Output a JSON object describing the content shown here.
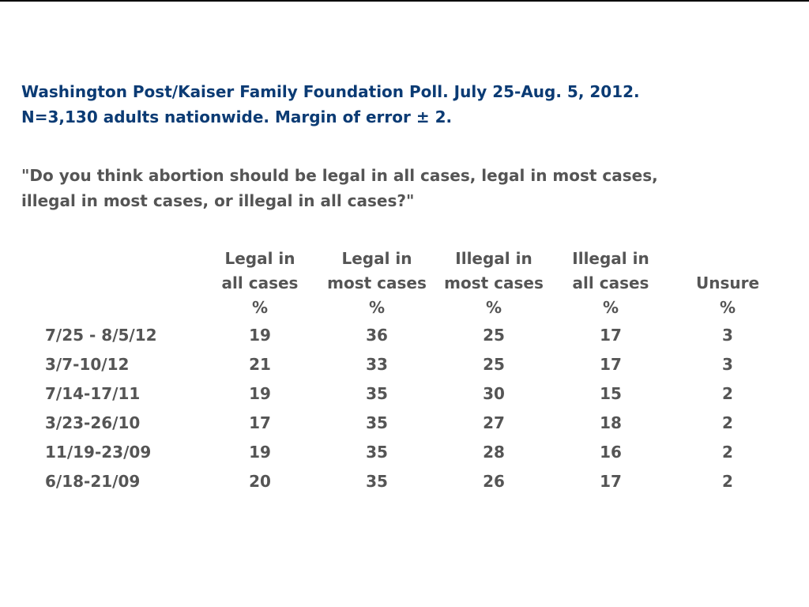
{
  "header": {
    "line1": "Washington Post/Kaiser Family Foundation Poll. July 25-Aug. 5, 2012.",
    "line2": "N=3,130 adults nationwide. Margin of error ± 2."
  },
  "question": {
    "line1": "\"Do you think abortion should be legal in all cases, legal in most cases,",
    "line2": "illegal in most cases, or illegal in all cases?\""
  },
  "table": {
    "columns": [
      {
        "line1": "Legal in",
        "line2": "all cases",
        "unit": "%"
      },
      {
        "line1": "Legal in",
        "line2": "most cases",
        "unit": "%"
      },
      {
        "line1": "Illegal in",
        "line2": "most cases",
        "unit": "%"
      },
      {
        "line1": "Illegal in",
        "line2": "all cases",
        "unit": "%"
      },
      {
        "line1": "",
        "line2": "Unsure",
        "unit": "%"
      }
    ],
    "rows": [
      {
        "date": "7/25 - 8/5/12",
        "values": [
          "19",
          "36",
          "25",
          "17",
          "3"
        ]
      },
      {
        "date": "3/7-10/12",
        "values": [
          "21",
          "33",
          "25",
          "17",
          "3"
        ]
      },
      {
        "date": "7/14-17/11",
        "values": [
          "19",
          "35",
          "30",
          "15",
          "2"
        ]
      },
      {
        "date": "3/23-26/10",
        "values": [
          "17",
          "35",
          "27",
          "18",
          "2"
        ]
      },
      {
        "date": "11/19-23/09",
        "values": [
          "19",
          "35",
          "28",
          "16",
          "2"
        ]
      },
      {
        "date": "6/18-21/09",
        "values": [
          "20",
          "35",
          "26",
          "17",
          "2"
        ]
      }
    ]
  },
  "colors": {
    "header_text": "#0b3b74",
    "body_text": "#555555",
    "top_rule": "#000000"
  }
}
